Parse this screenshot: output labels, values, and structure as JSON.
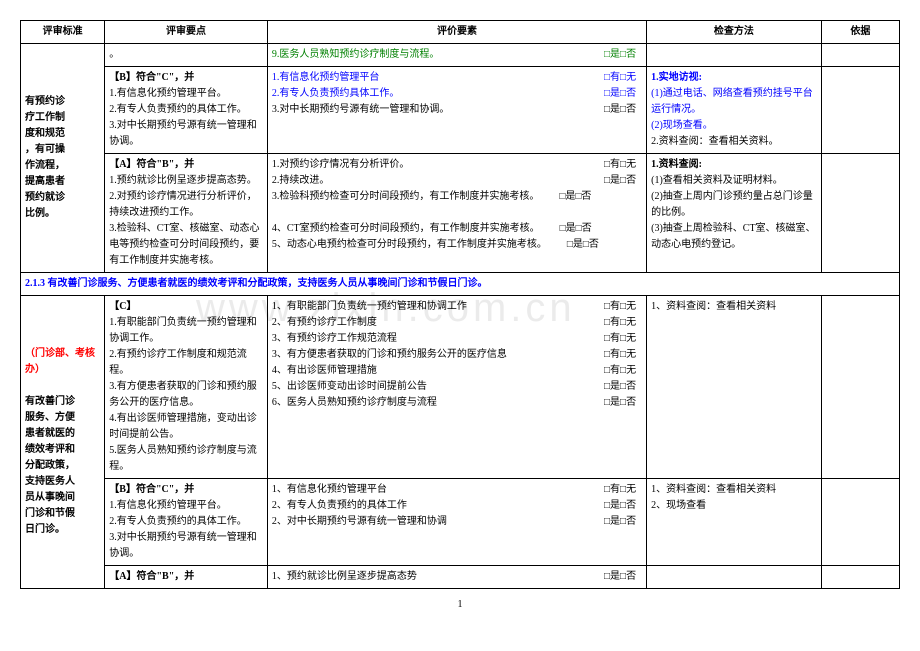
{
  "header": {
    "c1": "评审标准",
    "c2": "评审要点",
    "c3": "评价要素",
    "c4": "检查方法",
    "c5": "依据"
  },
  "row1": {
    "std_line1": "有预约诊",
    "std_line2": "疗工作制",
    "std_line3": "度和规范",
    "std_line4": "，有可操",
    "std_line5": "作流程，",
    "std_line6": "提高患者",
    "std_line7": "预约就诊",
    "std_line8": "比例。",
    "pt_dash": "。",
    "el_9": "9.医务人员熟知预约诊疗制度与流程。",
    "chk_yesno": "□是□否"
  },
  "row2": {
    "pt_head": "【B】符合\"C\"，并",
    "pt1": "1.有信息化预约管理平台。",
    "pt2": "2.有专人负责预约的具体工作。",
    "pt3": "3.对中长期预约号源有统一管理和协调。",
    "el1": "1.有信息化预约管理平台",
    "el2": "2.有专人负责预约具体工作。",
    "el3": "3.对中长期预约号源有统一管理和协调。",
    "chk_haveno": "□有□无",
    "chk_yesno": "□是□否",
    "m_head": "1.实地访视:",
    "m1": "(1)通过电话、网络查看预约挂号平台运行情况。",
    "m2": "(2)现场查看。",
    "m3": "2.资料查阅：查看相关资料。"
  },
  "row3": {
    "pt_head": "【A】符合\"B\"，并",
    "pt1": "1.预约就诊比例呈逐步提高态势。",
    "pt2": "2.对预约诊疗情况进行分析评价，持续改进预约工作。",
    "pt3": "3.检验科、CT室、核磁室、动态心电等预约检查可分时间段预约，要有工作制度并实施考核。",
    "el1": "1.对预约诊疗情况有分析评价。",
    "el2": "2.持续改进。",
    "el3": "3.检验科预约检查可分时间段预约，有工作制度并实施考核。",
    "el4": "4、CT室预约检查可分时间段预约，有工作制度并实施考核。",
    "el5": "5、动态心电预约检查可分时段预约，有工作制度并实施考核。",
    "chk_haveno": "□有□无",
    "chk_yesno": "□是□否",
    "m_head": "1.资料查阅:",
    "m1": "(1)查看相关资料及证明材料。",
    "m2": "(2)抽查上周内门诊预约量占总门诊量的比例。",
    "m3": "(3)抽查上周检验科、CT室、核磁室、动态心电预约登记。"
  },
  "section": {
    "title": "2.1.3 有改善门诊服务、方便患者就医的绩效考评和分配政策，支持医务人员从事晚间门诊和节假日门诊。"
  },
  "row4": {
    "std_tag": "（门诊部、考核办）",
    "std_l1": "有改善门诊",
    "std_l2": "服务、方便",
    "std_l3": "患者就医的",
    "std_l4": "绩效考评和",
    "std_l5": "分配政策，",
    "std_l6": "支持医务人",
    "std_l7": "员从事晚间",
    "std_l8": "门诊和节假",
    "std_l9": "日门诊。",
    "pt_head": "【C】",
    "pt1": "1.有职能部门负责统一预约管理和协调工作。",
    "pt2": "2.有预约诊疗工作制度和规范流程。",
    "pt3": "3.有方便患者获取的门诊和预约服务公开的医疗信息。",
    "pt4": "4.有出诊医师管理措施，变动出诊时间提前公告。",
    "pt5": "5.医务人员熟知预约诊疗制度与流程。",
    "el1": "1、有职能部门负责统一预约管理和协调工作",
    "el2": "2、有预约诊疗工作制度",
    "el3": "3、有预约诊疗工作规范流程",
    "el4": "3、有方便患者获取的门诊和预约服务公开的医疗信息",
    "el5": "4、有出诊医师管理措施",
    "el6": "5、出诊医师变动出诊时间提前公告",
    "el7": "6、医务人员熟知预约诊疗制度与流程",
    "chk_haveno": "□有□无",
    "chk_yesno": "□是□否",
    "m1": "1、资料查阅：查看相关资料"
  },
  "row5": {
    "pt_head": "【B】符合\"C\"，并",
    "pt1": "1.有信息化预约管理平台。",
    "pt2": "2.有专人负责预约的具体工作。",
    "pt3": "3.对中长期预约号源有统一管理和协调。",
    "el1": "1、有信息化预约管理平台",
    "el2": "2、有专人负责预约的具体工作",
    "el3": "2、对中长期预约号源有统一管理和协调",
    "chk_haveno": "□有□无",
    "chk_yesno": "□是□否",
    "m1": "1、资料查阅：查看相关资料",
    "m2": "2、现场查看"
  },
  "row6": {
    "pt_head": "【A】符合\"B\"，并",
    "el1": "1、预约就诊比例呈逐步提高态势",
    "chk_yesno": "□是□否"
  },
  "pagenum": "1"
}
